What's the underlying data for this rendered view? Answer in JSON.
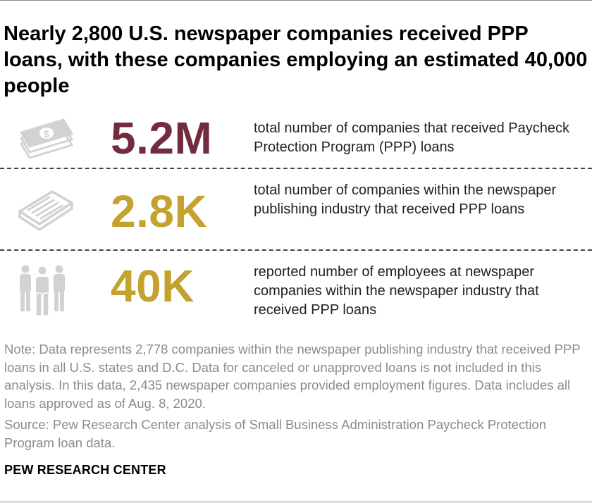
{
  "title": "Nearly 2,800 U.S. newspaper companies received PPP loans, with these companies employing an estimated 40,000 people",
  "colors": {
    "stat1": "#722c3e",
    "stat2": "#c4a22d",
    "stat3": "#c4a22d",
    "icon": "#d2d2d2"
  },
  "stats": [
    {
      "icon": "money-icon",
      "value": "5.2M",
      "description": "total number of companies that received Paycheck Protection Program (PPP) loans"
    },
    {
      "icon": "newspaper-icon",
      "value": "2.8K",
      "description": "total number of companies within the newspaper publishing industry that received PPP loans"
    },
    {
      "icon": "people-icon",
      "value": "40K",
      "description": "reported number of employees at newspaper companies within the newspaper industry that received PPP loans"
    }
  ],
  "note": "Note: Data represents 2,778 companies within the newspaper publishing industry that received PPP loans in all U.S. states and D.C. Data for canceled or unapproved loans is not included in this analysis. In this data, 2,435 newspaper companies provided employment figures. Data includes all loans approved as of Aug. 8, 2020.",
  "source": "Source: Pew Research Center analysis of Small Business Administration Paycheck Protection Program loan data.",
  "brand": "PEW RESEARCH CENTER"
}
